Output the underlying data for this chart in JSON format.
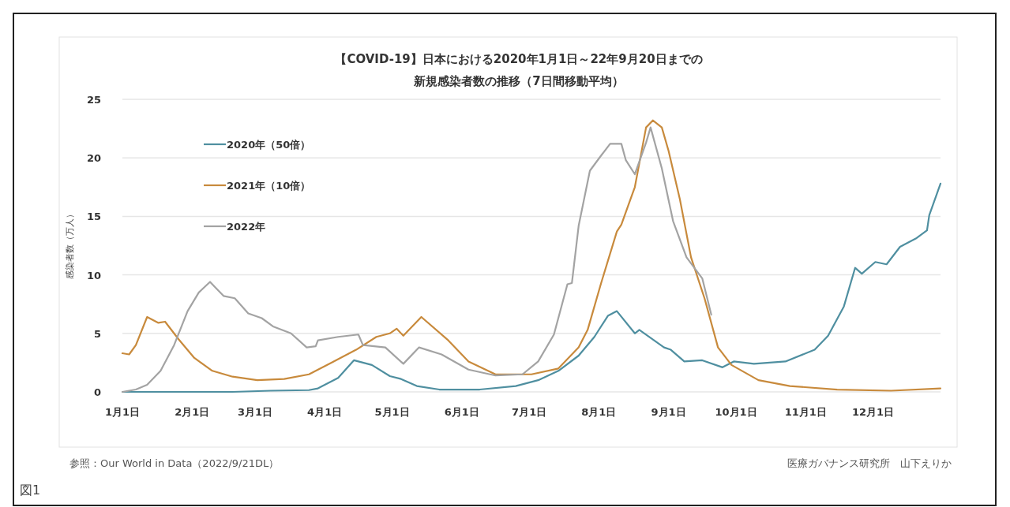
{
  "chart_data": {
    "type": "line",
    "title": "【COVID-19】日本における2020年1月1日～22年9月20日までの",
    "subtitle": "新規感染者数の推移（7日間移動平均）",
    "ylabel": "感染者数（万人）",
    "xlim": [
      "--01-01",
      "--12-31"
    ],
    "ylim": [
      0,
      25
    ],
    "xticks": [
      {
        "value": "--01-01",
        "label": "1月1日"
      },
      {
        "value": "--02-01",
        "label": "2月1日"
      },
      {
        "value": "--03-01",
        "label": "3月1日"
      },
      {
        "value": "--04-01",
        "label": "4月1日"
      },
      {
        "value": "--05-01",
        "label": "5月1日"
      },
      {
        "value": "--06-01",
        "label": "6月1日"
      },
      {
        "value": "--07-01",
        "label": "7月1日"
      },
      {
        "value": "--08-01",
        "label": "8月1日"
      },
      {
        "value": "--09-01",
        "label": "9月1日"
      },
      {
        "value": "--10-01",
        "label": "10月1日"
      },
      {
        "value": "--11-01",
        "label": "11月1日"
      },
      {
        "value": "--12-01",
        "label": "12月1日"
      }
    ],
    "yticks": [
      0,
      5,
      10,
      15,
      20,
      25
    ],
    "grid": "y",
    "legend": "top left",
    "marker": "none",
    "line_style": "solid",
    "series": [
      {
        "name": "2020年（50倍）",
        "color": "#4f8fa0",
        "x": [
          "--01-01",
          "--02-19",
          "--03-08",
          "--03-25",
          "--03-29",
          "--04-07",
          "--04-14",
          "--04-22",
          "--04-30",
          "--05-05",
          "--05-12",
          "--05-22",
          "--06-09",
          "--06-25",
          "--07-05",
          "--07-14",
          "--07-23",
          "--07-30",
          "--08-05",
          "--08-09",
          "--08-17",
          "--08-19",
          "--08-30",
          "--09-02",
          "--09-08",
          "--09-16",
          "--09-25",
          "--09-30",
          "--10-09",
          "--10-23",
          "--11-05",
          "--11-11",
          "--11-18",
          "--11-23",
          "--11-26",
          "--12-02",
          "--12-07",
          "--12-13",
          "--12-20",
          "--12-25",
          "--12-26",
          "--12-31"
        ],
        "values": [
          0,
          0,
          0.1,
          0.15,
          0.3,
          1.2,
          2.7,
          2.3,
          1.35,
          1.1,
          0.5,
          0.2,
          0.2,
          0.5,
          1.0,
          1.8,
          3.1,
          4.7,
          6.5,
          6.9,
          5.0,
          5.3,
          3.8,
          3.6,
          2.6,
          2.7,
          2.1,
          2.6,
          2.4,
          2.6,
          3.6,
          4.8,
          7.3,
          10.6,
          10.1,
          11.1,
          10.9,
          12.4,
          13.1,
          13.8,
          15.1,
          17.8
        ]
      },
      {
        "name": "2021年（10倍）",
        "color": "#c88a3c",
        "x": [
          "--01-01",
          "--01-04",
          "--01-07",
          "--01-12",
          "--01-17",
          "--01-20",
          "--01-26",
          "--02-02",
          "--02-10",
          "--02-19",
          "--03-02",
          "--03-14",
          "--03-25",
          "--04-04",
          "--04-15",
          "--04-24",
          "--04-30",
          "--05-03",
          "--05-06",
          "--05-14",
          "--05-26",
          "--06-04",
          "--06-16",
          "--07-02",
          "--07-14",
          "--07-23",
          "--07-27",
          "--08-02",
          "--08-09",
          "--08-11",
          "--08-17",
          "--08-22",
          "--08-25",
          "--08-29",
          "--09-01",
          "--09-06",
          "--09-11",
          "--09-17",
          "--09-23",
          "--09-29",
          "--10-11",
          "--10-25",
          "--11-15",
          "--12-09",
          "--12-31"
        ],
        "values": [
          3.3,
          3.2,
          4.0,
          6.4,
          5.9,
          6.0,
          4.5,
          2.9,
          1.8,
          1.3,
          1.0,
          1.1,
          1.5,
          2.5,
          3.6,
          4.7,
          5.0,
          5.4,
          4.8,
          6.4,
          4.4,
          2.6,
          1.5,
          1.5,
          2.0,
          3.8,
          5.3,
          9.3,
          13.7,
          14.3,
          17.5,
          22.6,
          23.2,
          22.6,
          20.6,
          16.5,
          11.5,
          8.0,
          3.8,
          2.3,
          1.0,
          0.5,
          0.2,
          0.1,
          0.3
        ]
      },
      {
        "name": "2022年",
        "color": "#a3a3a3",
        "x": [
          "--01-01",
          "--01-07",
          "--01-12",
          "--01-18",
          "--01-24",
          "--01-30",
          "--02-04",
          "--02-09",
          "--02-11",
          "--02-15",
          "--02-20",
          "--02-26",
          "--03-04",
          "--03-09",
          "--03-17",
          "--03-24",
          "--03-28",
          "--03-29",
          "--04-07",
          "--04-16",
          "--04-18",
          "--04-28",
          "--05-06",
          "--05-13",
          "--05-23",
          "--06-04",
          "--06-16",
          "--06-28",
          "--07-05",
          "--07-12",
          "--07-18",
          "--07-20",
          "--07-23",
          "--07-28",
          "--08-02",
          "--08-06",
          "--08-11",
          "--08-13",
          "--08-17",
          "--08-22",
          "--08-24",
          "--08-29",
          "--09-03",
          "--09-09",
          "--09-16",
          "--09-20"
        ],
        "values": [
          0,
          0.2,
          0.6,
          1.8,
          4.0,
          6.9,
          8.5,
          9.4,
          9.0,
          8.2,
          8.0,
          6.7,
          6.3,
          5.6,
          5.0,
          3.8,
          3.9,
          4.4,
          4.7,
          4.9,
          4.0,
          3.8,
          2.4,
          3.8,
          3.2,
          1.9,
          1.4,
          1.5,
          2.6,
          4.9,
          9.2,
          9.3,
          14.2,
          18.9,
          20.2,
          21.2,
          21.2,
          19.8,
          18.6,
          21.3,
          22.6,
          19.1,
          14.6,
          11.5,
          9.7,
          6.6
        ]
      }
    ],
    "annotations": [
      "参照：Our World in Data（2022/9/21DL）",
      "医療ガバナンス研究所　山下えりか",
      "図1"
    ]
  }
}
